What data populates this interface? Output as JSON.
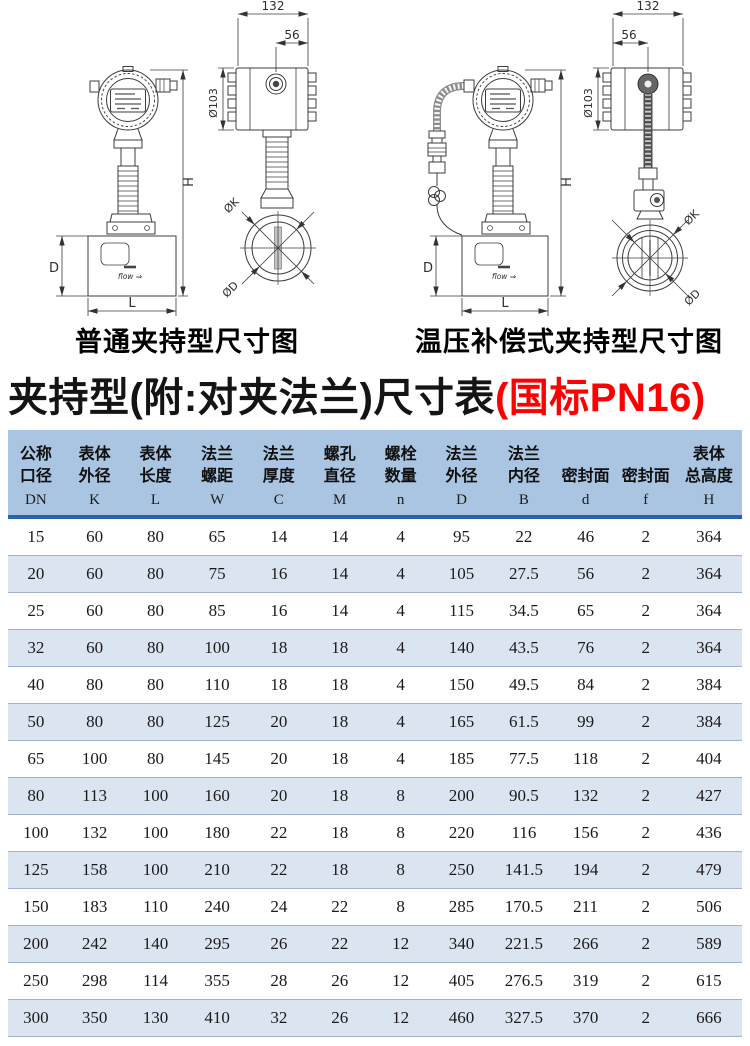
{
  "theme": {
    "header_bg": "#aac5e2",
    "header_rule": "#2b62ae",
    "stripe_bg": "#dbe5f1",
    "row_line": "#9fb3cd",
    "accent_red": "#fe0000",
    "line": "#3c3c3c"
  },
  "drawings": {
    "left_caption": "普通夹持型尺寸图",
    "right_caption": "温压补偿式夹持型尺寸图",
    "dims": {
      "w132": "132",
      "w56": "56",
      "d103": "Ø103",
      "h": "H",
      "d": "D",
      "l": "L",
      "k": "ØK",
      "dd": "ØD",
      "flow": "flow ⇒"
    }
  },
  "title": {
    "black": "夹持型(附:对夹法兰)尺寸表",
    "red": "(国标PN16)"
  },
  "table": {
    "columns": [
      {
        "lines": [
          "公称",
          "口径"
        ],
        "code": "DN"
      },
      {
        "lines": [
          "表体",
          "外径"
        ],
        "code": "K"
      },
      {
        "lines": [
          "表体",
          "长度"
        ],
        "code": "L"
      },
      {
        "lines": [
          "法兰",
          "螺距"
        ],
        "code": "W"
      },
      {
        "lines": [
          "法兰",
          "厚度"
        ],
        "code": "C"
      },
      {
        "lines": [
          "螺孔",
          "直径"
        ],
        "code": "M"
      },
      {
        "lines": [
          "螺栓",
          "数量"
        ],
        "code": "n"
      },
      {
        "lines": [
          "法兰",
          "外径"
        ],
        "code": "D"
      },
      {
        "lines": [
          "法兰",
          "内径"
        ],
        "code": "B"
      },
      {
        "lines": [
          "密封面"
        ],
        "code": "d"
      },
      {
        "lines": [
          "密封面"
        ],
        "code": "f"
      },
      {
        "lines": [
          "表体",
          "总高度"
        ],
        "code": "H"
      }
    ],
    "rows": [
      [
        "15",
        "60",
        "80",
        "65",
        "14",
        "14",
        "4",
        "95",
        "22",
        "46",
        "2",
        "364"
      ],
      [
        "20",
        "60",
        "80",
        "75",
        "16",
        "14",
        "4",
        "105",
        "27.5",
        "56",
        "2",
        "364"
      ],
      [
        "25",
        "60",
        "80",
        "85",
        "16",
        "14",
        "4",
        "115",
        "34.5",
        "65",
        "2",
        "364"
      ],
      [
        "32",
        "60",
        "80",
        "100",
        "18",
        "18",
        "4",
        "140",
        "43.5",
        "76",
        "2",
        "364"
      ],
      [
        "40",
        "80",
        "80",
        "110",
        "18",
        "18",
        "4",
        "150",
        "49.5",
        "84",
        "2",
        "384"
      ],
      [
        "50",
        "80",
        "80",
        "125",
        "20",
        "18",
        "4",
        "165",
        "61.5",
        "99",
        "2",
        "384"
      ],
      [
        "65",
        "100",
        "80",
        "145",
        "20",
        "18",
        "4",
        "185",
        "77.5",
        "118",
        "2",
        "404"
      ],
      [
        "80",
        "113",
        "100",
        "160",
        "20",
        "18",
        "8",
        "200",
        "90.5",
        "132",
        "2",
        "427"
      ],
      [
        "100",
        "132",
        "100",
        "180",
        "22",
        "18",
        "8",
        "220",
        "116",
        "156",
        "2",
        "436"
      ],
      [
        "125",
        "158",
        "100",
        "210",
        "22",
        "18",
        "8",
        "250",
        "141.5",
        "194",
        "2",
        "479"
      ],
      [
        "150",
        "183",
        "110",
        "240",
        "24",
        "22",
        "8",
        "285",
        "170.5",
        "211",
        "2",
        "506"
      ],
      [
        "200",
        "242",
        "140",
        "295",
        "26",
        "22",
        "12",
        "340",
        "221.5",
        "266",
        "2",
        "589"
      ],
      [
        "250",
        "298",
        "114",
        "355",
        "28",
        "26",
        "12",
        "405",
        "276.5",
        "319",
        "2",
        "615"
      ],
      [
        "300",
        "350",
        "130",
        "410",
        "32",
        "26",
        "12",
        "460",
        "327.5",
        "370",
        "2",
        "666"
      ]
    ]
  }
}
